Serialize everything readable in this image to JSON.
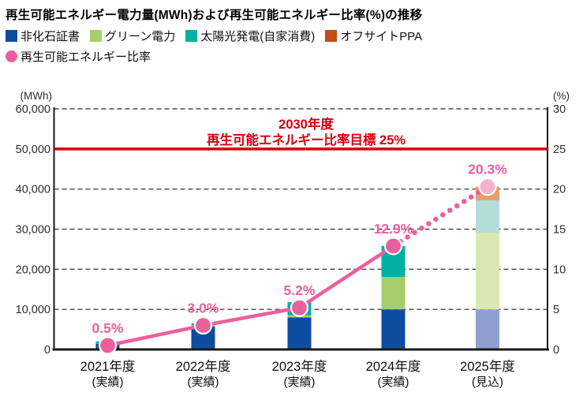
{
  "title": "再生可能エネルギー電力量(MWh)および再生可能エネルギー比率(%)の推移",
  "legend": [
    {
      "label": "非化石証書",
      "color": "#0d4da0",
      "shape": "square"
    },
    {
      "label": "グリーン電力",
      "color": "#a6ce6b",
      "shape": "square"
    },
    {
      "label": "太陽光発電(自家消費)",
      "color": "#00b0a2",
      "shape": "square"
    },
    {
      "label": "オフサイトPPA",
      "color": "#c64a14",
      "shape": "square"
    },
    {
      "label": "再生可能エネルギー比率",
      "color": "#ec5f9d",
      "shape": "circle"
    }
  ],
  "chart_data": {
    "type": "bar",
    "subtype": "stacked-bars-with-percentage-line",
    "categories": [
      "2021年度",
      "2022年度",
      "2023年度",
      "2024年度",
      "2025年度"
    ],
    "category_notes": [
      "(実績)",
      "(実績)",
      "(実績)",
      "(実績)",
      "(見込)"
    ],
    "left_axis": {
      "title": "(MWh)",
      "min": 0,
      "max": 60000,
      "tick_values": [
        0,
        10000,
        20000,
        30000,
        40000,
        50000,
        60000
      ],
      "tick_labels": [
        "0",
        "10,000",
        "20,000",
        "30,000",
        "40,000",
        "50,000",
        "60,000"
      ]
    },
    "right_axis": {
      "title": "(%)",
      "min": 0,
      "max": 30,
      "tick_values": [
        0,
        5,
        10,
        15,
        20,
        25,
        30
      ],
      "tick_labels": [
        "0",
        "5",
        "10",
        "15",
        "20",
        "25",
        "30"
      ]
    },
    "gridline_values": [
      10000,
      20000,
      30000,
      40000,
      60000
    ],
    "series": [
      {
        "name": "非化石証書",
        "color": "#0d4da0",
        "forecast_color": "#8f9fd0",
        "values": [
          1400,
          5700,
          8000,
          10000,
          10000
        ]
      },
      {
        "name": "グリーン電力",
        "color": "#a6ce6b",
        "forecast_color": "#dbe7b0",
        "values": [
          0,
          400,
          500,
          8100,
          19100
        ]
      },
      {
        "name": "太陽光発電(自家消費)",
        "color": "#00b0a2",
        "forecast_color": "#b2ddd8",
        "values": [
          600,
          400,
          3300,
          7700,
          8100
        ]
      },
      {
        "name": "オフサイトPPA",
        "color": "#c64a14",
        "forecast_color": "#e6a06a",
        "values": [
          0,
          0,
          0,
          0,
          3400
        ]
      }
    ],
    "line_series": {
      "name": "再生可能エネルギー比率",
      "color": "#ec5f9d",
      "forecast_point_color": "#f3b3cd",
      "values_pct": [
        0.5,
        3.0,
        5.2,
        12.9,
        20.3
      ],
      "point_labels": [
        "0.5%",
        "3.0%",
        "5.2%",
        "12.9%",
        "20.3%"
      ],
      "dotted_from_index": 3
    },
    "target_line": {
      "value_mwh": 50000,
      "value_pct": 25,
      "color": "#d7000f",
      "label_lines": [
        "2030年度",
        "再生可能エネルギー比率目標 25%"
      ]
    },
    "forecast_index": 4
  }
}
